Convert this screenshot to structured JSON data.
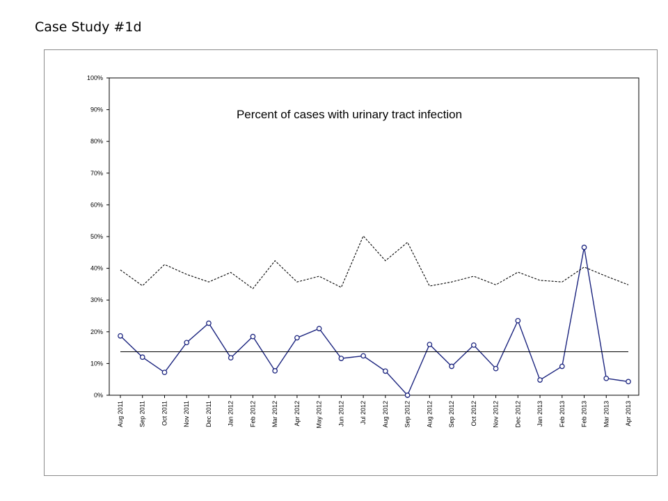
{
  "slide": {
    "title": "Case Study #1d"
  },
  "chart_data": {
    "type": "line",
    "title": "Percent of cases with urinary tract infection",
    "xlabel": "",
    "ylabel": "",
    "ylim": [
      0,
      1
    ],
    "yticks": [
      "0%",
      "10%",
      "20%",
      "30%",
      "40%",
      "50%",
      "60%",
      "70%",
      "80%",
      "90%",
      "100%"
    ],
    "categories": [
      "Aug 2011",
      "Sep 2011",
      "Oct 2011",
      "Nov 2011",
      "Dec 2011",
      "Jan 2012",
      "Feb 2012",
      "Mar 2012",
      "Apr 2012",
      "May 2012",
      "Jun 2012",
      "Jul 2012",
      "Aug 2012",
      "Sep 2012",
      "Aug 2012",
      "Sep 2012",
      "Oct 2012",
      "Nov 2012",
      "Dec 2012",
      "Jan 2013",
      "Feb 2013",
      "Feb 2013",
      "Mar 2013",
      "Apr 2013"
    ],
    "series": [
      {
        "style": "marker-line",
        "color": "#1a237e",
        "values": [
          0.187,
          0.12,
          0.072,
          0.166,
          0.227,
          0.118,
          0.185,
          0.077,
          0.181,
          0.21,
          0.116,
          0.124,
          0.076,
          0.0,
          0.16,
          0.091,
          0.158,
          0.084,
          0.235,
          0.048,
          0.091,
          0.466,
          0.053,
          0.043
        ]
      },
      {
        "style": "dashed",
        "color": "#000000",
        "values": [
          0.395,
          0.345,
          0.412,
          0.381,
          0.357,
          0.387,
          0.336,
          0.424,
          0.357,
          0.375,
          0.34,
          0.502,
          0.424,
          0.482,
          0.344,
          0.357,
          0.375,
          0.348,
          0.388,
          0.362,
          0.357,
          0.404,
          0.375,
          0.348
        ]
      },
      {
        "style": "solid",
        "color": "#000000",
        "values": [
          0.137,
          0.137,
          0.137,
          0.137,
          0.137,
          0.137,
          0.137,
          0.137,
          0.137,
          0.137,
          0.137,
          0.137,
          0.137,
          0.137,
          0.137,
          0.137,
          0.137,
          0.137,
          0.137,
          0.137,
          0.137,
          0.137,
          0.137,
          0.137
        ]
      }
    ],
    "grid": false,
    "legend": "none"
  }
}
